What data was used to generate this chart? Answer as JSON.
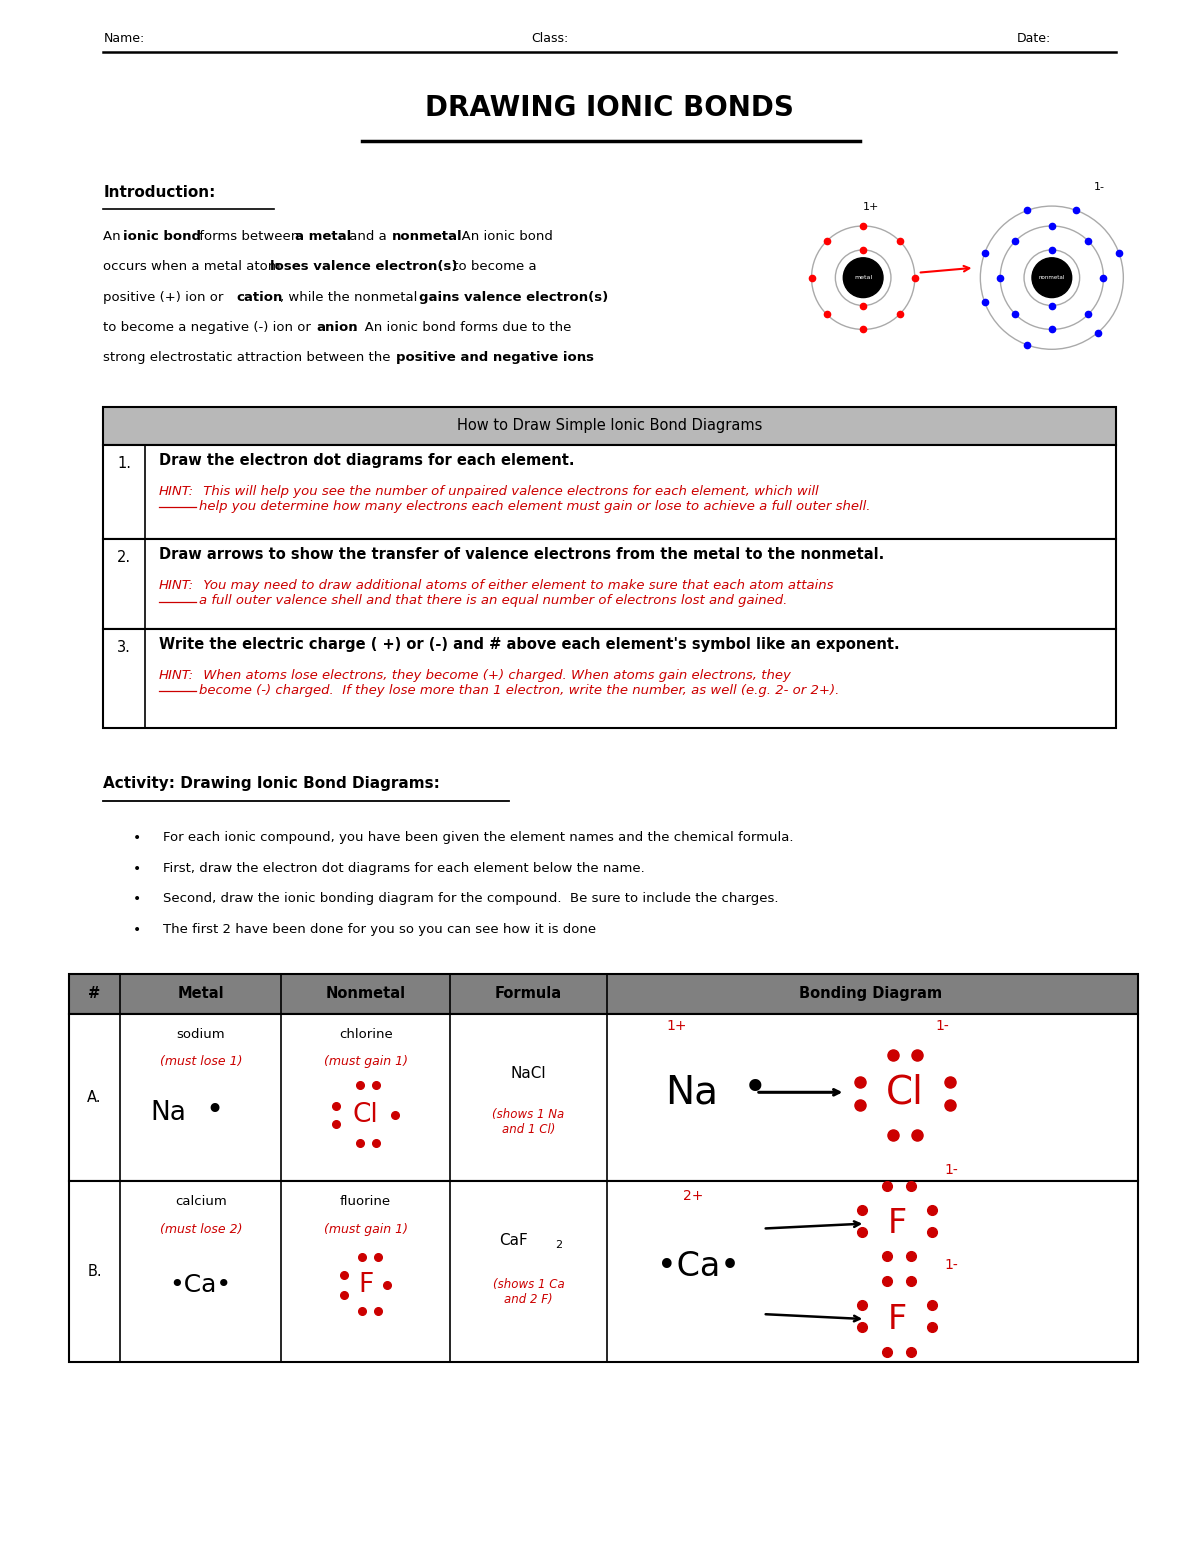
{
  "title": "DRAWING IONIC BONDS",
  "table1_header": "How to Draw Simple Ionic Bond Diagrams",
  "table1_rows": [
    {
      "num": "1.",
      "bold": "Draw the electron dot diagrams for each element.",
      "hint_label": "HINT:",
      "hint_text": " This will help you see the number of unpaired valence electrons for each element, which will\nhelp you determine how many electrons each element must gain or lose to achieve a full outer shell."
    },
    {
      "num": "2.",
      "bold": "Draw arrows to show the transfer of valence electrons from the metal to the nonmetal.",
      "hint_label": "HINT:",
      "hint_text": " You may need to draw additional atoms of either element to make sure that each atom attains\na full outer valence shell and that there is an equal number of electrons lost and gained."
    },
    {
      "num": "3.",
      "bold": "Write the electric charge ( +) or (-) and # above each element's symbol like an exponent.",
      "hint_label": "HINT:",
      "hint_text": " When atoms lose electrons, they become (+) charged. When atoms gain electrons, they\nbecome (-) charged.  If they lose more than 1 electron, write the number, as well (e.g. 2- or 2+)."
    }
  ],
  "activity_header": "Activity: Drawing Ionic Bond Diagrams:",
  "bullets": [
    "For each ionic compound, you have been given the element names and the chemical formula.",
    "First, draw the electron dot diagrams for each element below the name.",
    "Second, draw the ionic bonding diagram for the compound.  Be sure to include the charges.",
    "The first 2 have been done for you so you can see how it is done"
  ],
  "table2_headers": [
    "#",
    "Metal",
    "Nonmetal",
    "Formula",
    "Bonding Diagram"
  ],
  "bg_color": "#ffffff",
  "text_color": "#000000",
  "red_color": "#cc0000",
  "table_header_bg": "#b8b8b8",
  "table2_header_bg": "#808080"
}
